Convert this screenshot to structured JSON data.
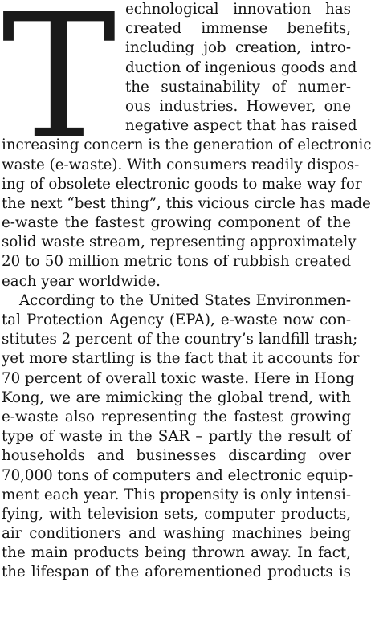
{
  "article": {
    "dropcap": "T",
    "paragraph1": [
      "echnological innovation has",
      "created immense benefits,",
      "including job creation, intro-",
      "duction of ingenious goods and",
      "the sustainability of numer-",
      "ous industries. However, one",
      "negative aspect that has raised",
      "increasing concern is the generation of electronic",
      "waste (e-waste). With consumers readily dispos-",
      "ing of obsolete electronic goods to make way for",
      "the next “best thing”, this vicious circle has made",
      "e-waste the fastest growing component of the",
      "solid waste stream, representing approximately",
      "20 to 50 million metric tons of rubbish created",
      "each year worldwide."
    ],
    "paragraph2": [
      "According to the United States Environmen-",
      "tal Protection Agency (EPA), e-waste now con-",
      "stitutes 2 percent of the country’s landfill trash;",
      "yet more startling is the fact that it accounts for",
      "70 percent of overall toxic waste. Here in Hong",
      "Kong, we are mimicking the global trend, with",
      "e-waste also representing the fastest growing",
      "type of waste in the SAR – partly the result of",
      "households and businesses discarding over",
      "70,000 tons of computers and electronic equip-",
      "ment each year. This propensity is only intensi-",
      "fying, with television sets, computer products,",
      "air conditioners and washing machines being",
      "the main products being thrown away. In fact,",
      "the lifespan of the aforementioned products is"
    ]
  }
}
